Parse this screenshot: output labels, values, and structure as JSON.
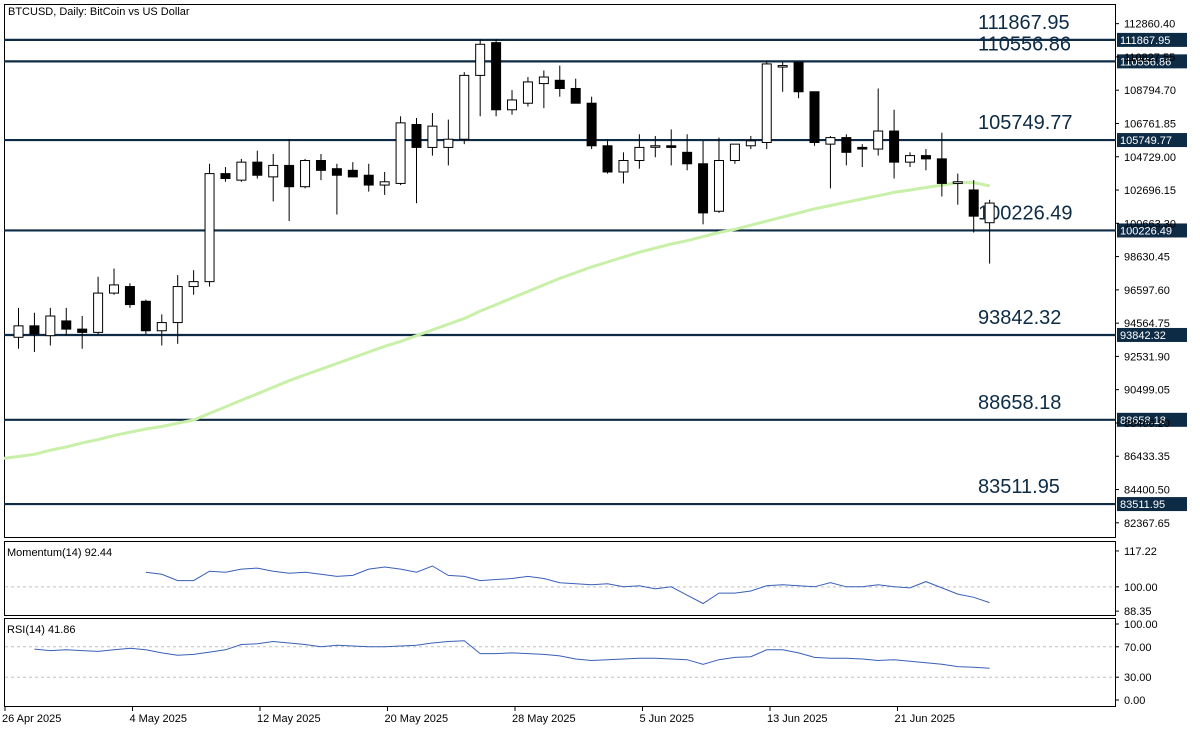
{
  "chart_title": "BTCUSD, Daily:  BitCoin vs US Dollar",
  "colors": {
    "background": "#ffffff",
    "frame": "#000000",
    "level_line": "#0d2b45",
    "label_bg": "#0d2b45",
    "label_text": "#ffffff",
    "ma_line": "#c8f0a8",
    "indicator_line": "#3a5fb8",
    "bull_fill": "#ffffff",
    "bear_fill": "#000000",
    "grid_dash": "#c0c0c0"
  },
  "price_axis_ticks": [
    "112860.40",
    "110827.55",
    "108794.70",
    "106761.85",
    "104729.00",
    "102696.15",
    "100663.30",
    "98630.45",
    "96597.60",
    "94564.75",
    "92531.90",
    "90499.05",
    "88466.20",
    "86433.35",
    "84400.50",
    "82367.65"
  ],
  "date_axis_ticks": [
    "26 Apr 2025",
    "4 May 2025",
    "12 May 2025",
    "20 May 2025",
    "28 May 2025",
    "5 Jun 2025",
    "13 Jun 2025",
    "21 Jun 2025"
  ],
  "momentum_panel": {
    "label": "Momentum(14) 92.44",
    "ticks": [
      "117.22",
      "100.00",
      "88.35"
    ]
  },
  "rsi_panel": {
    "label": "RSI(14) 41.86",
    "ticks": [
      "100.00",
      "70.00",
      "30.00",
      "0.00"
    ]
  },
  "chart_data": {
    "type": "candlestick",
    "symbol": "BTCUSD",
    "timeframe": "Daily",
    "ylim": [
      81500,
      114000
    ],
    "horizontal_levels": [
      111867.95,
      110556.86,
      105749.77,
      100226.49,
      93842.32,
      88658.18,
      83511.95
    ],
    "level_labels": [
      "111867.95",
      "110556.86",
      "105749.77",
      "100226.49",
      "93842.32",
      "88658.18",
      "83511.95"
    ],
    "candles": [
      {
        "o": 93700,
        "h": 95500,
        "l": 93000,
        "c": 94400
      },
      {
        "o": 94400,
        "h": 95200,
        "l": 92800,
        "c": 93900
      },
      {
        "o": 93800,
        "h": 95500,
        "l": 93200,
        "c": 95000
      },
      {
        "o": 94700,
        "h": 95500,
        "l": 93800,
        "c": 94200
      },
      {
        "o": 94200,
        "h": 95000,
        "l": 93000,
        "c": 94000
      },
      {
        "o": 94000,
        "h": 97400,
        "l": 93900,
        "c": 96400
      },
      {
        "o": 96400,
        "h": 97900,
        "l": 96300,
        "c": 96900
      },
      {
        "o": 96800,
        "h": 97000,
        "l": 95500,
        "c": 95700
      },
      {
        "o": 95900,
        "h": 96000,
        "l": 93900,
        "c": 94100
      },
      {
        "o": 94100,
        "h": 95100,
        "l": 93200,
        "c": 94600
      },
      {
        "o": 94600,
        "h": 97500,
        "l": 93300,
        "c": 96800
      },
      {
        "o": 96800,
        "h": 97800,
        "l": 96300,
        "c": 97100
      },
      {
        "o": 97100,
        "h": 104300,
        "l": 96800,
        "c": 103700
      },
      {
        "o": 103700,
        "h": 104100,
        "l": 103200,
        "c": 103400
      },
      {
        "o": 103300,
        "h": 104600,
        "l": 103200,
        "c": 104400
      },
      {
        "o": 104400,
        "h": 105100,
        "l": 103400,
        "c": 103600
      },
      {
        "o": 103500,
        "h": 104900,
        "l": 102000,
        "c": 104200
      },
      {
        "o": 104200,
        "h": 105800,
        "l": 100800,
        "c": 102900
      },
      {
        "o": 102900,
        "h": 104600,
        "l": 102800,
        "c": 104500
      },
      {
        "o": 104500,
        "h": 104900,
        "l": 103300,
        "c": 103900
      },
      {
        "o": 104000,
        "h": 104300,
        "l": 101200,
        "c": 103600
      },
      {
        "o": 103900,
        "h": 104400,
        "l": 103500,
        "c": 103500
      },
      {
        "o": 103600,
        "h": 104300,
        "l": 102600,
        "c": 103000
      },
      {
        "o": 103000,
        "h": 103800,
        "l": 102400,
        "c": 103200
      },
      {
        "o": 103100,
        "h": 107200,
        "l": 103000,
        "c": 106800
      },
      {
        "o": 106700,
        "h": 107100,
        "l": 101900,
        "c": 105300
      },
      {
        "o": 105300,
        "h": 107400,
        "l": 104800,
        "c": 106600
      },
      {
        "o": 105300,
        "h": 107000,
        "l": 104200,
        "c": 105800
      },
      {
        "o": 105800,
        "h": 109900,
        "l": 105500,
        "c": 109700
      },
      {
        "o": 109700,
        "h": 111900,
        "l": 107200,
        "c": 111600
      },
      {
        "o": 111700,
        "h": 111900,
        "l": 107200,
        "c": 107600
      },
      {
        "o": 107600,
        "h": 108800,
        "l": 107300,
        "c": 108200
      },
      {
        "o": 108000,
        "h": 109600,
        "l": 107800,
        "c": 109300
      },
      {
        "o": 109200,
        "h": 110000,
        "l": 107700,
        "c": 109600
      },
      {
        "o": 109400,
        "h": 110300,
        "l": 108400,
        "c": 108900
      },
      {
        "o": 108900,
        "h": 109500,
        "l": 108000,
        "c": 108000
      },
      {
        "o": 108000,
        "h": 108400,
        "l": 105200,
        "c": 105400
      },
      {
        "o": 105400,
        "h": 105800,
        "l": 103700,
        "c": 103800
      },
      {
        "o": 103800,
        "h": 105000,
        "l": 103100,
        "c": 104500
      },
      {
        "o": 104500,
        "h": 106100,
        "l": 104000,
        "c": 105300
      },
      {
        "o": 105400,
        "h": 106000,
        "l": 104700,
        "c": 105400
      },
      {
        "o": 105400,
        "h": 106400,
        "l": 104200,
        "c": 105300
      },
      {
        "o": 105000,
        "h": 106100,
        "l": 103900,
        "c": 104300
      },
      {
        "o": 104300,
        "h": 105700,
        "l": 100600,
        "c": 101300
      },
      {
        "o": 101400,
        "h": 105900,
        "l": 101300,
        "c": 104500
      },
      {
        "o": 104500,
        "h": 105500,
        "l": 104300,
        "c": 105500
      },
      {
        "o": 105400,
        "h": 106000,
        "l": 105200,
        "c": 105700
      },
      {
        "o": 105600,
        "h": 110600,
        "l": 105200,
        "c": 110400
      },
      {
        "o": 110300,
        "h": 110500,
        "l": 108700,
        "c": 110300
      },
      {
        "o": 110500,
        "h": 110500,
        "l": 108300,
        "c": 108700
      },
      {
        "o": 108700,
        "h": 108700,
        "l": 105400,
        "c": 105600
      },
      {
        "o": 105500,
        "h": 106000,
        "l": 102800,
        "c": 105900
      },
      {
        "o": 105900,
        "h": 106100,
        "l": 104200,
        "c": 105000
      },
      {
        "o": 105300,
        "h": 105500,
        "l": 104100,
        "c": 105200
      },
      {
        "o": 105200,
        "h": 108900,
        "l": 104800,
        "c": 106300
      },
      {
        "o": 106300,
        "h": 107600,
        "l": 103400,
        "c": 104400
      },
      {
        "o": 104400,
        "h": 105000,
        "l": 104100,
        "c": 104800
      },
      {
        "o": 104800,
        "h": 105200,
        "l": 103900,
        "c": 104600
      },
      {
        "o": 104600,
        "h": 106200,
        "l": 102300,
        "c": 103100
      },
      {
        "o": 103100,
        "h": 103700,
        "l": 101800,
        "c": 103200
      },
      {
        "o": 102700,
        "h": 103300,
        "l": 100100,
        "c": 101100
      },
      {
        "o": 100700,
        "h": 102100,
        "l": 98200,
        "c": 101900
      }
    ],
    "moving_average": [
      86300,
      86550,
      86800,
      87000,
      87250,
      87450,
      87700,
      87900,
      88100,
      88250,
      88450,
      88650,
      89050,
      89450,
      89850,
      90250,
      90650,
      91050,
      91400,
      91750,
      92100,
      92450,
      92800,
      93150,
      93450,
      93800,
      94150,
      94500,
      94850,
      95300,
      95700,
      96100,
      96500,
      96900,
      97300,
      97650,
      98000,
      98300,
      98600,
      98900,
      99150,
      99400,
      99600,
      99850,
      100100,
      100300,
      100550,
      100800,
      101050,
      101300,
      101550,
      101750,
      101950,
      102150,
      102350,
      102550,
      102700,
      102850,
      103000,
      103150,
      103150,
      102950
    ],
    "momentum": [
      107.0,
      106.0,
      103.0,
      103.0,
      107.5,
      107.0,
      108.5,
      109.0,
      107.5,
      106.5,
      107.0,
      106.0,
      105.0,
      105.5,
      108.5,
      109.5,
      108.5,
      107.0,
      110.0,
      105.5,
      105.0,
      103.0,
      103.5,
      104.0,
      105.0,
      104.0,
      102.0,
      101.5,
      101.0,
      101.5,
      100.0,
      100.5,
      99.0,
      100.0,
      96.0,
      92.0,
      97.0,
      97.0,
      98.0,
      100.5,
      101.0,
      100.5,
      100.0,
      102.0,
      100.0,
      100.0,
      101.0,
      100.0,
      99.5,
      102.5,
      99.5,
      96.5,
      95.0,
      92.44
    ],
    "rsi": [
      67,
      65,
      66,
      65,
      64,
      66,
      68,
      66,
      62,
      59,
      60,
      63,
      66,
      73,
      74,
      77,
      75,
      73,
      70,
      72,
      71,
      70,
      70,
      71,
      72,
      75,
      77,
      78,
      61,
      61,
      62,
      61,
      60,
      58,
      54,
      52,
      53,
      54,
      55,
      55,
      54,
      53,
      47,
      53,
      56,
      57,
      66,
      66,
      62,
      56,
      55,
      55,
      54,
      52,
      53,
      51,
      49,
      47,
      44,
      43,
      41.86
    ]
  }
}
